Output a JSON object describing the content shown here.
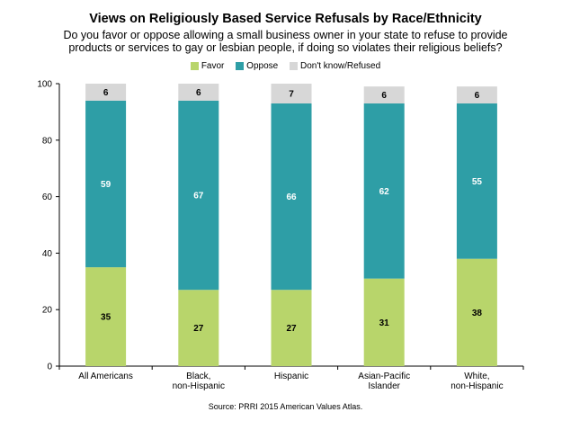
{
  "title": "Views on Religiously Based Service Refusals by Race/Ethnicity",
  "subtitle_lines": [
    "Do you favor or oppose allowing a small business owner in your state to refuse to provide",
    "products or services to gay or lesbian people, if doing so violates their religious beliefs?"
  ],
  "source": "Source: PRRI 2015 American Values Atlas.",
  "colors": {
    "favor": "#b8d56b",
    "oppose": "#2e9ea6",
    "dontknow": "#d7d7d7"
  },
  "chart_data": {
    "type": "bar",
    "stacked": true,
    "categories": [
      [
        "All Americans"
      ],
      [
        "Black,",
        "non-Hispanic"
      ],
      [
        "Hispanic"
      ],
      [
        "Asian-Pacific",
        "Islander"
      ],
      [
        "White,",
        "non-Hispanic"
      ]
    ],
    "series": [
      {
        "name": "Favor",
        "values": [
          35,
          27,
          27,
          31,
          38
        ]
      },
      {
        "name": "Oppose",
        "values": [
          59,
          67,
          66,
          62,
          55
        ]
      },
      {
        "name": "Don't know/Refused",
        "values": [
          6,
          6,
          7,
          6,
          6
        ]
      }
    ],
    "ylim": [
      0,
      100
    ],
    "yticks": [
      0,
      20,
      40,
      60,
      80,
      100
    ],
    "legend_position": "top",
    "grid": false
  }
}
